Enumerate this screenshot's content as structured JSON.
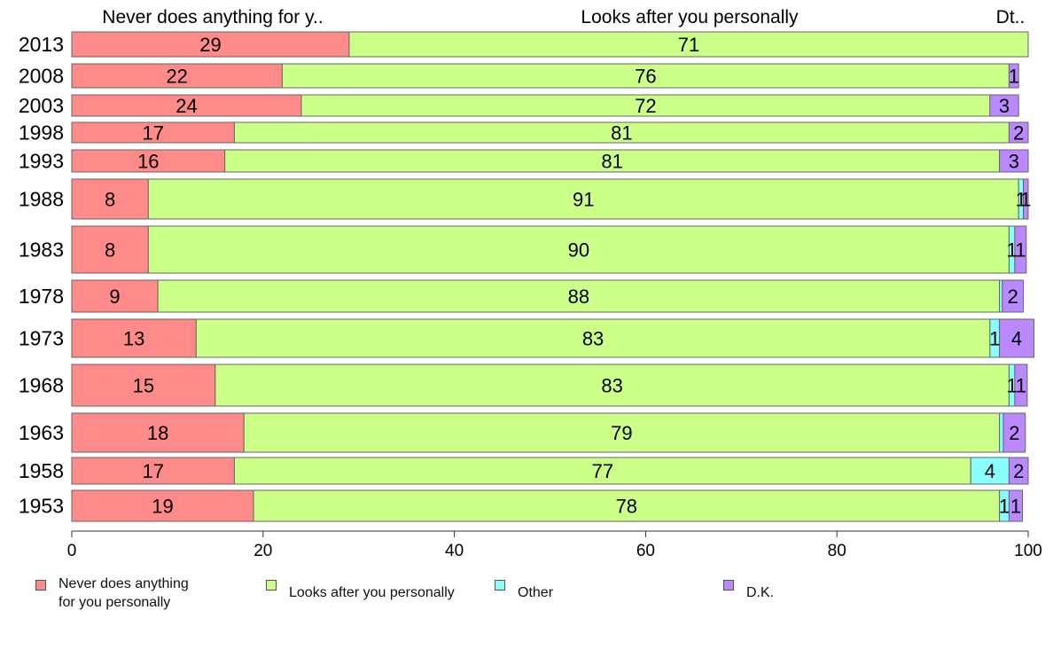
{
  "chart_data": {
    "type": "bar",
    "orientation": "horizontal",
    "stacked": true,
    "categories": [
      "2013",
      "2008",
      "2003",
      "1998",
      "1993",
      "1988",
      "1983",
      "1978",
      "1973",
      "1968",
      "1963",
      "1958",
      "1953"
    ],
    "series": [
      {
        "name": "Never does anything\nfor you personally",
        "color": "#ff8a8a",
        "values": [
          29,
          22,
          24,
          17,
          16,
          8,
          8,
          9,
          13,
          15,
          18,
          17,
          19
        ]
      },
      {
        "name": "Looks after you personally",
        "color": "#ccff88",
        "values": [
          71,
          76,
          72,
          81,
          81,
          91,
          90,
          88,
          83,
          83,
          79,
          77,
          78
        ]
      },
      {
        "name": "Other",
        "color": "#88ffff",
        "values": [
          0,
          0,
          0,
          0,
          0,
          0.5,
          0.6,
          0.3,
          1,
          0.6,
          0.4,
          4,
          1
        ]
      },
      {
        "name": "D.K.",
        "color": "#bb88ff",
        "values": [
          0,
          1,
          3,
          2,
          3,
          0.5,
          1.2,
          2.2,
          3.6,
          1.3,
          2.3,
          2,
          1.4
        ]
      }
    ],
    "data_labels": [
      [
        "29",
        "71",
        "",
        ""
      ],
      [
        "22",
        "76",
        "",
        "1"
      ],
      [
        "24",
        "72",
        "",
        "3"
      ],
      [
        "17",
        "81",
        "",
        "2"
      ],
      [
        "16",
        "81",
        "",
        "3"
      ],
      [
        "8",
        "91",
        "1",
        "1"
      ],
      [
        "8",
        "90",
        "1",
        "1"
      ],
      [
        "9",
        "88",
        "",
        "2"
      ],
      [
        "13",
        "83",
        "1",
        "4"
      ],
      [
        "15",
        "83",
        "1",
        "1"
      ],
      [
        "18",
        "79",
        "",
        "2"
      ],
      [
        "17",
        "77",
        "4",
        "2"
      ],
      [
        "19",
        "78",
        "1",
        "1"
      ]
    ],
    "column_headers": [
      "Never does anything for y..",
      "Looks after you personally",
      "Dt.."
    ],
    "xlim": [
      0,
      100
    ],
    "x_ticks": [
      "0",
      "20",
      "40",
      "60",
      "80",
      "100"
    ],
    "grid": false,
    "legend_position": "bottom"
  }
}
